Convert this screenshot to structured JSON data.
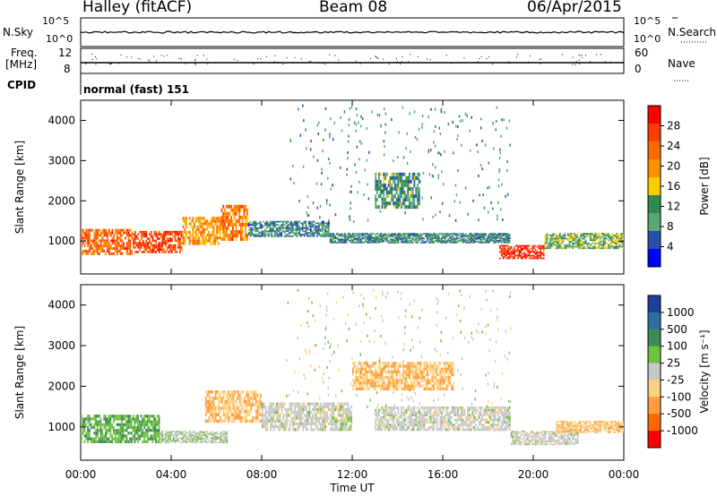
{
  "header": {
    "station": "Halley (fitACF)",
    "beam": "Beam 08",
    "date": "06/Apr/2015"
  },
  "strips": {
    "nsky": {
      "label": "N.Sky",
      "ticks_left": [
        "10^5",
        "10^0"
      ],
      "right_label": "N.Search",
      "ticks_right": [
        "10^5",
        "10^0"
      ]
    },
    "freq": {
      "label_line1": "Freq.",
      "label_line2": "[MHz]",
      "ticks_left": [
        "12",
        "8"
      ],
      "right_label": "Nave",
      "ticks_right": [
        "60",
        "0"
      ]
    },
    "cpid": {
      "label": "CPID",
      "text": "normal (fast) 151"
    }
  },
  "x_axis": {
    "ticks": [
      "00:00",
      "04:00",
      "08:00",
      "12:00",
      "16:00",
      "20:00",
      "00:00"
    ],
    "title": "Time UT"
  },
  "y_axis": {
    "ticks": [
      "1000",
      "2000",
      "3000",
      "4000"
    ],
    "title": "Slant Range [km]"
  },
  "colorbars": {
    "power": {
      "title": "Power [dB]",
      "labels": [
        "28",
        "24",
        "20",
        "16",
        "12",
        "8",
        "4"
      ],
      "colors": [
        "#ff0000",
        "#ff3c00",
        "#ff6a00",
        "#ff9000",
        "#ffcc00",
        "#2e8a4f",
        "#57a872",
        "#2a4fa8",
        "#0000ff"
      ]
    },
    "velocity": {
      "title": "Velocity [m s⁻¹]",
      "labels": [
        "1000",
        "500",
        "100",
        "25",
        "-25",
        "-100",
        "-500",
        "-1000"
      ],
      "colors": [
        "#1f3f9f",
        "#2f6fa0",
        "#3a8a5a",
        "#70c040",
        "#c8c8c8",
        "#ffd27f",
        "#ff9e40",
        "#ff6a00",
        "#ff0000"
      ]
    }
  },
  "chart_data": [
    {
      "type": "heatmap",
      "title": "Power [dB]",
      "xlabel": "Time UT",
      "ylabel": "Slant Range [km]",
      "xlim": [
        0,
        24
      ],
      "ylim": [
        180,
        4500
      ],
      "colorbar_range": [
        0,
        32
      ],
      "regions": [
        {
          "t0": 0.0,
          "t1": 2.3,
          "r0": 650,
          "r1": 1300,
          "value": 24
        },
        {
          "t0": 2.3,
          "t1": 4.5,
          "r0": 700,
          "r1": 1250,
          "value": 26
        },
        {
          "t0": 4.5,
          "t1": 6.2,
          "r0": 900,
          "r1": 1600,
          "value": 20
        },
        {
          "t0": 6.2,
          "t1": 7.4,
          "r0": 1000,
          "r1": 1900,
          "value": 22
        },
        {
          "t0": 7.4,
          "t1": 11.0,
          "r0": 1100,
          "r1": 1500,
          "value": 8
        },
        {
          "t0": 11.0,
          "t1": 19.0,
          "r0": 950,
          "r1": 1200,
          "value": 9
        },
        {
          "t0": 13.0,
          "t1": 15.0,
          "r0": 1800,
          "r1": 2700,
          "value": 10
        },
        {
          "t0": 18.5,
          "t1": 20.5,
          "r0": 550,
          "r1": 900,
          "value": 28
        },
        {
          "t0": 20.5,
          "t1": 24.0,
          "r0": 800,
          "r1": 1200,
          "value": 12
        }
      ]
    },
    {
      "type": "heatmap",
      "title": "Velocity [m s⁻¹]",
      "xlabel": "Time UT",
      "ylabel": "Slant Range [km]",
      "xlim": [
        0,
        24
      ],
      "ylim": [
        180,
        4500
      ],
      "colorbar_range": [
        -1000,
        1000
      ],
      "regions": [
        {
          "t0": 0.0,
          "t1": 3.5,
          "r0": 600,
          "r1": 1300,
          "value": 300
        },
        {
          "t0": 3.5,
          "t1": 6.5,
          "r0": 600,
          "r1": 900,
          "value": 80
        },
        {
          "t0": 5.5,
          "t1": 8.0,
          "r0": 1100,
          "r1": 1900,
          "value": -300
        },
        {
          "t0": 8.0,
          "t1": 12.0,
          "r0": 900,
          "r1": 1600,
          "value": 0
        },
        {
          "t0": 12.0,
          "t1": 16.5,
          "r0": 1900,
          "r1": 2600,
          "value": -300
        },
        {
          "t0": 13.0,
          "t1": 19.0,
          "r0": 900,
          "r1": 1500,
          "value": 0
        },
        {
          "t0": 19.0,
          "t1": 22.0,
          "r0": 550,
          "r1": 900,
          "value": 0
        },
        {
          "t0": 21.0,
          "t1": 24.0,
          "r0": 850,
          "r1": 1150,
          "value": -300
        }
      ]
    }
  ]
}
